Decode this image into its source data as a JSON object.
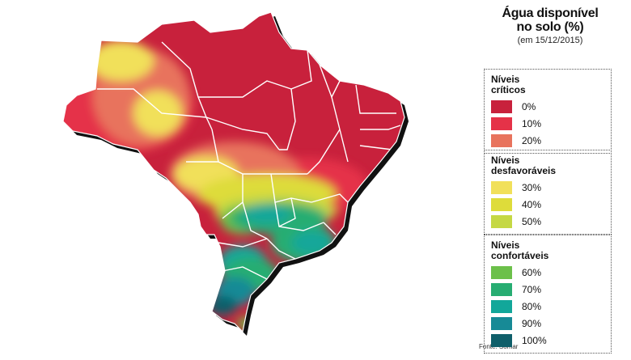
{
  "legend": {
    "title_line1": "Água disponível",
    "title_line2": "no solo (%)",
    "date": "(em 15/12/2015)",
    "groups": [
      {
        "title_line1": "Níveis",
        "title_line2": "críticos",
        "items": [
          {
            "label": "0%",
            "color": "#c8213c"
          },
          {
            "label": "10%",
            "color": "#e53248"
          },
          {
            "label": "20%",
            "color": "#e8735d"
          }
        ]
      },
      {
        "title_line1": "Níveis",
        "title_line2": "desfavoráveis",
        "items": [
          {
            "label": "30%",
            "color": "#f1e05a"
          },
          {
            "label": "40%",
            "color": "#dedc3a"
          },
          {
            "label": "50%",
            "color": "#c5d844"
          }
        ]
      },
      {
        "title_line1": "Níveis",
        "title_line2": "confortáveis",
        "items": [
          {
            "label": "60%",
            "color": "#6cc04a"
          },
          {
            "label": "70%",
            "color": "#27ad72"
          },
          {
            "label": "80%",
            "color": "#12a79a"
          },
          {
            "label": "90%",
            "color": "#178a96"
          },
          {
            "label": "100%",
            "color": "#0f5f6a"
          }
        ]
      }
    ]
  },
  "source": "Fonte: Somar"
}
